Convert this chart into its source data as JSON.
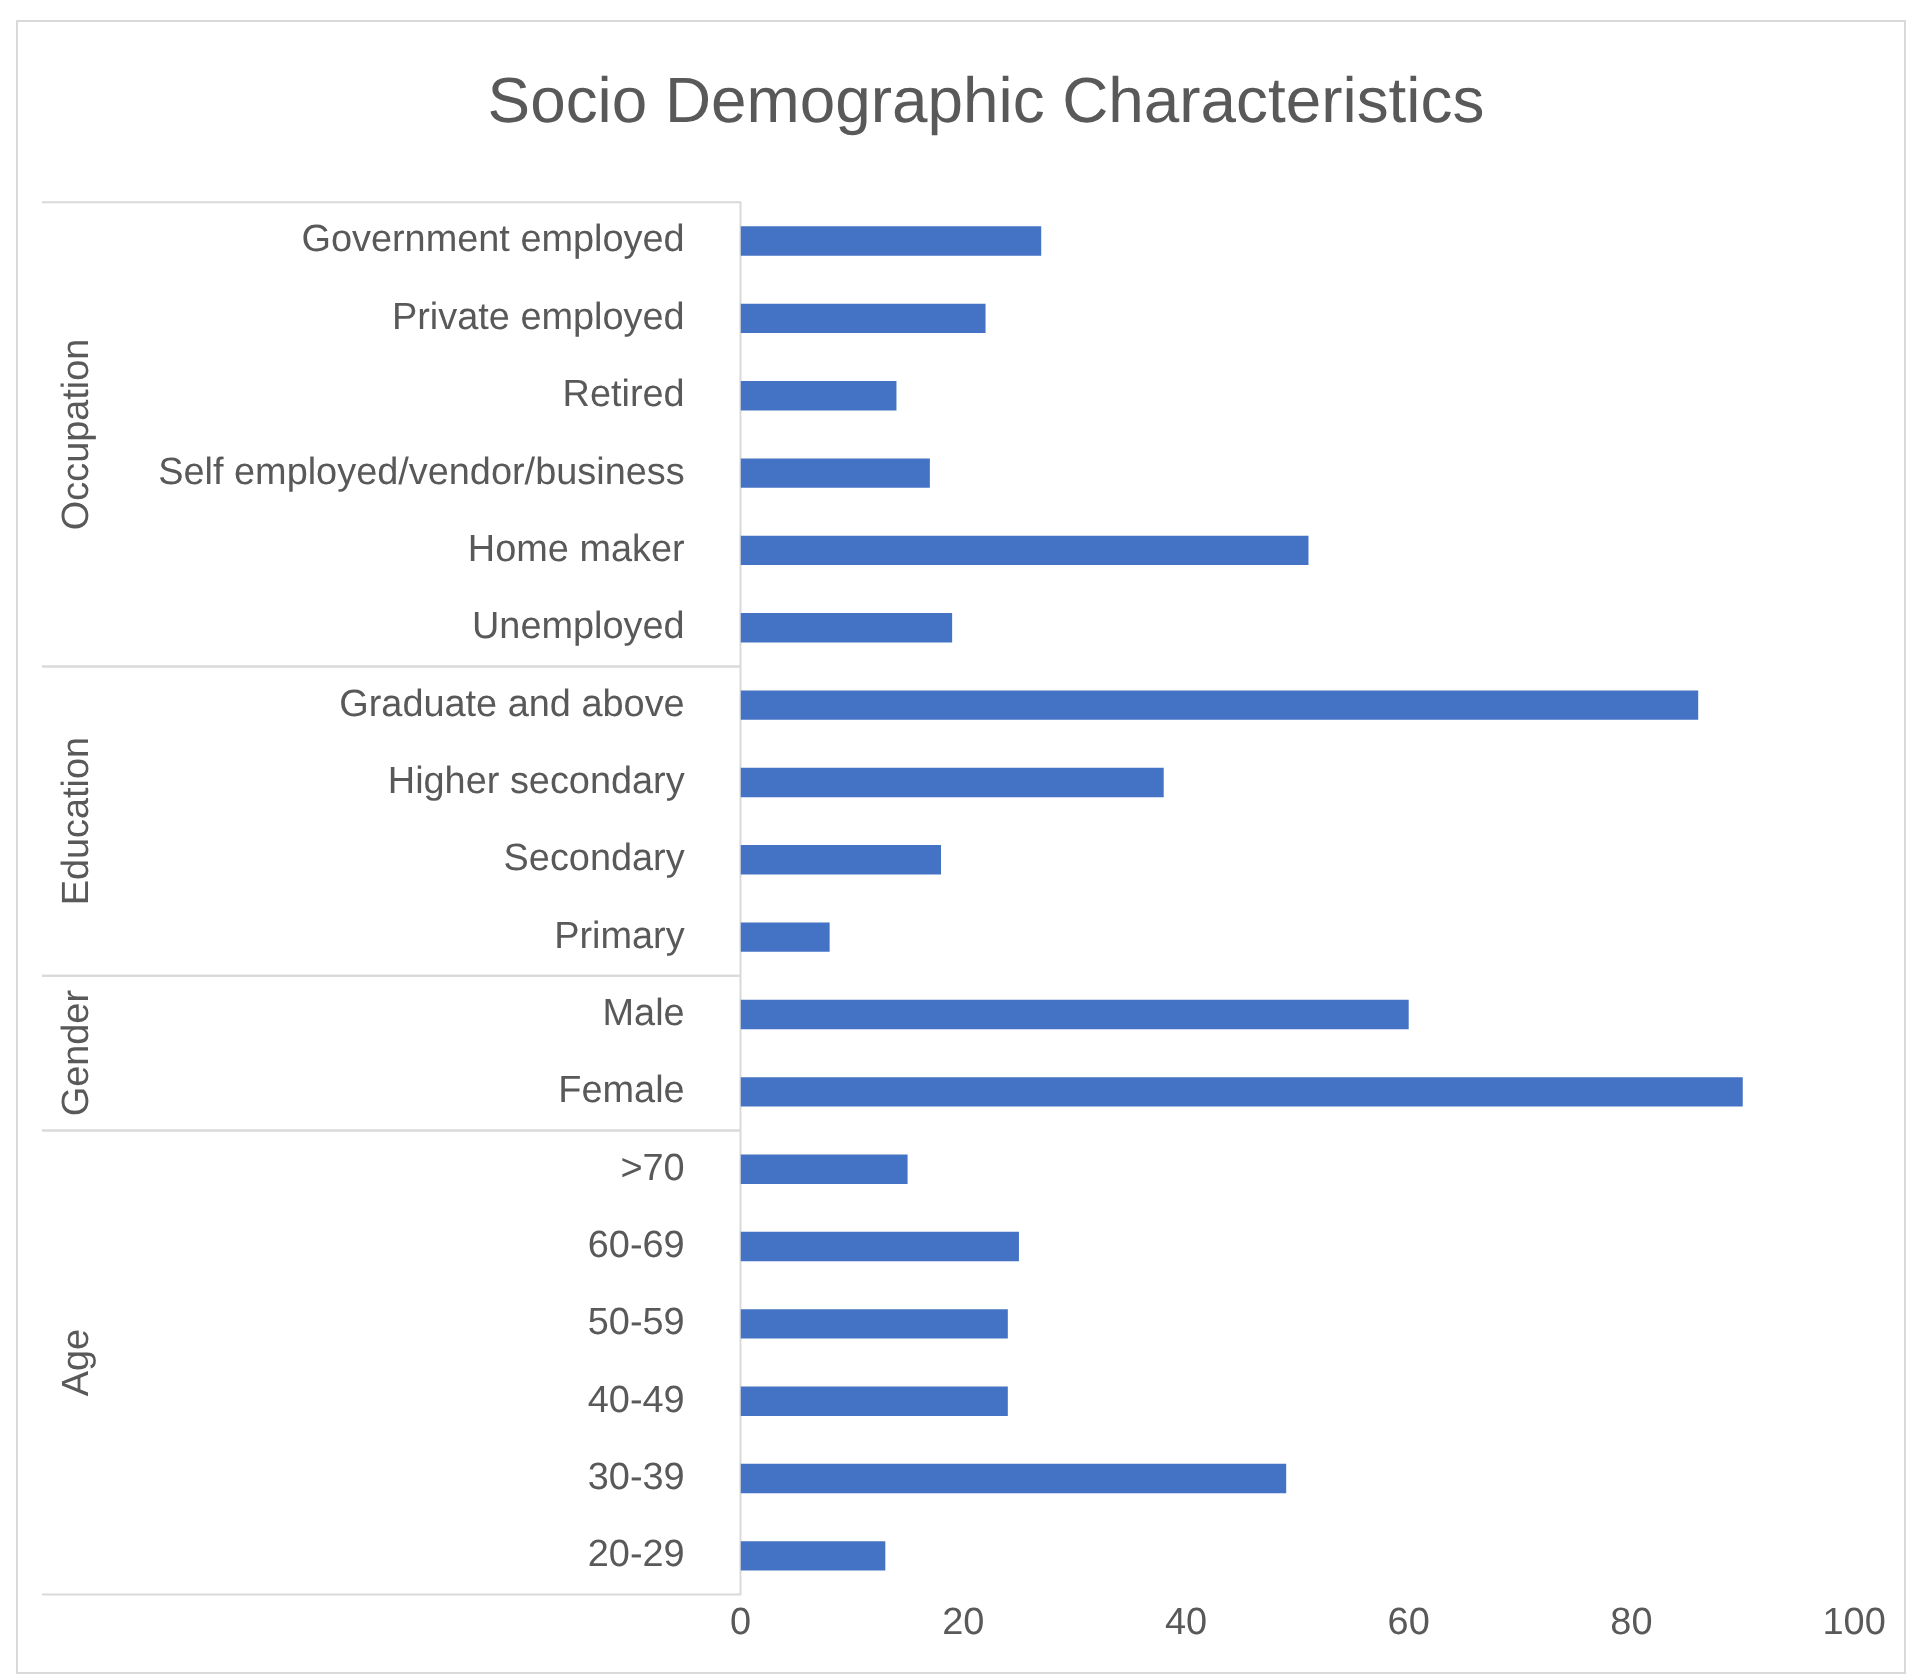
{
  "chart_data": {
    "type": "bar",
    "orientation": "horizontal",
    "title": "Socio Demographic Characteristics",
    "categories": [
      "Government employed",
      "Private employed",
      "Retired",
      "Self employed/vendor/business",
      "Home maker",
      "Unemployed",
      "Graduate and above",
      "Higher secondary",
      "Secondary",
      "Primary",
      "Male",
      "Female",
      ">70",
      "60-69",
      "50-59",
      "40-49",
      "30-39",
      "20-29"
    ],
    "values": [
      27,
      22,
      14,
      17,
      51,
      19,
      86,
      38,
      18,
      8,
      60,
      90,
      15,
      25,
      24,
      24,
      49,
      13
    ],
    "color": "#4472c4",
    "xlim": [
      0,
      100
    ],
    "xticks": [
      0,
      20,
      40,
      60,
      80,
      100
    ],
    "grid": false,
    "legend": false,
    "annotations": [
      "Occupation",
      "Education",
      "Gender",
      "Age"
    ]
  }
}
